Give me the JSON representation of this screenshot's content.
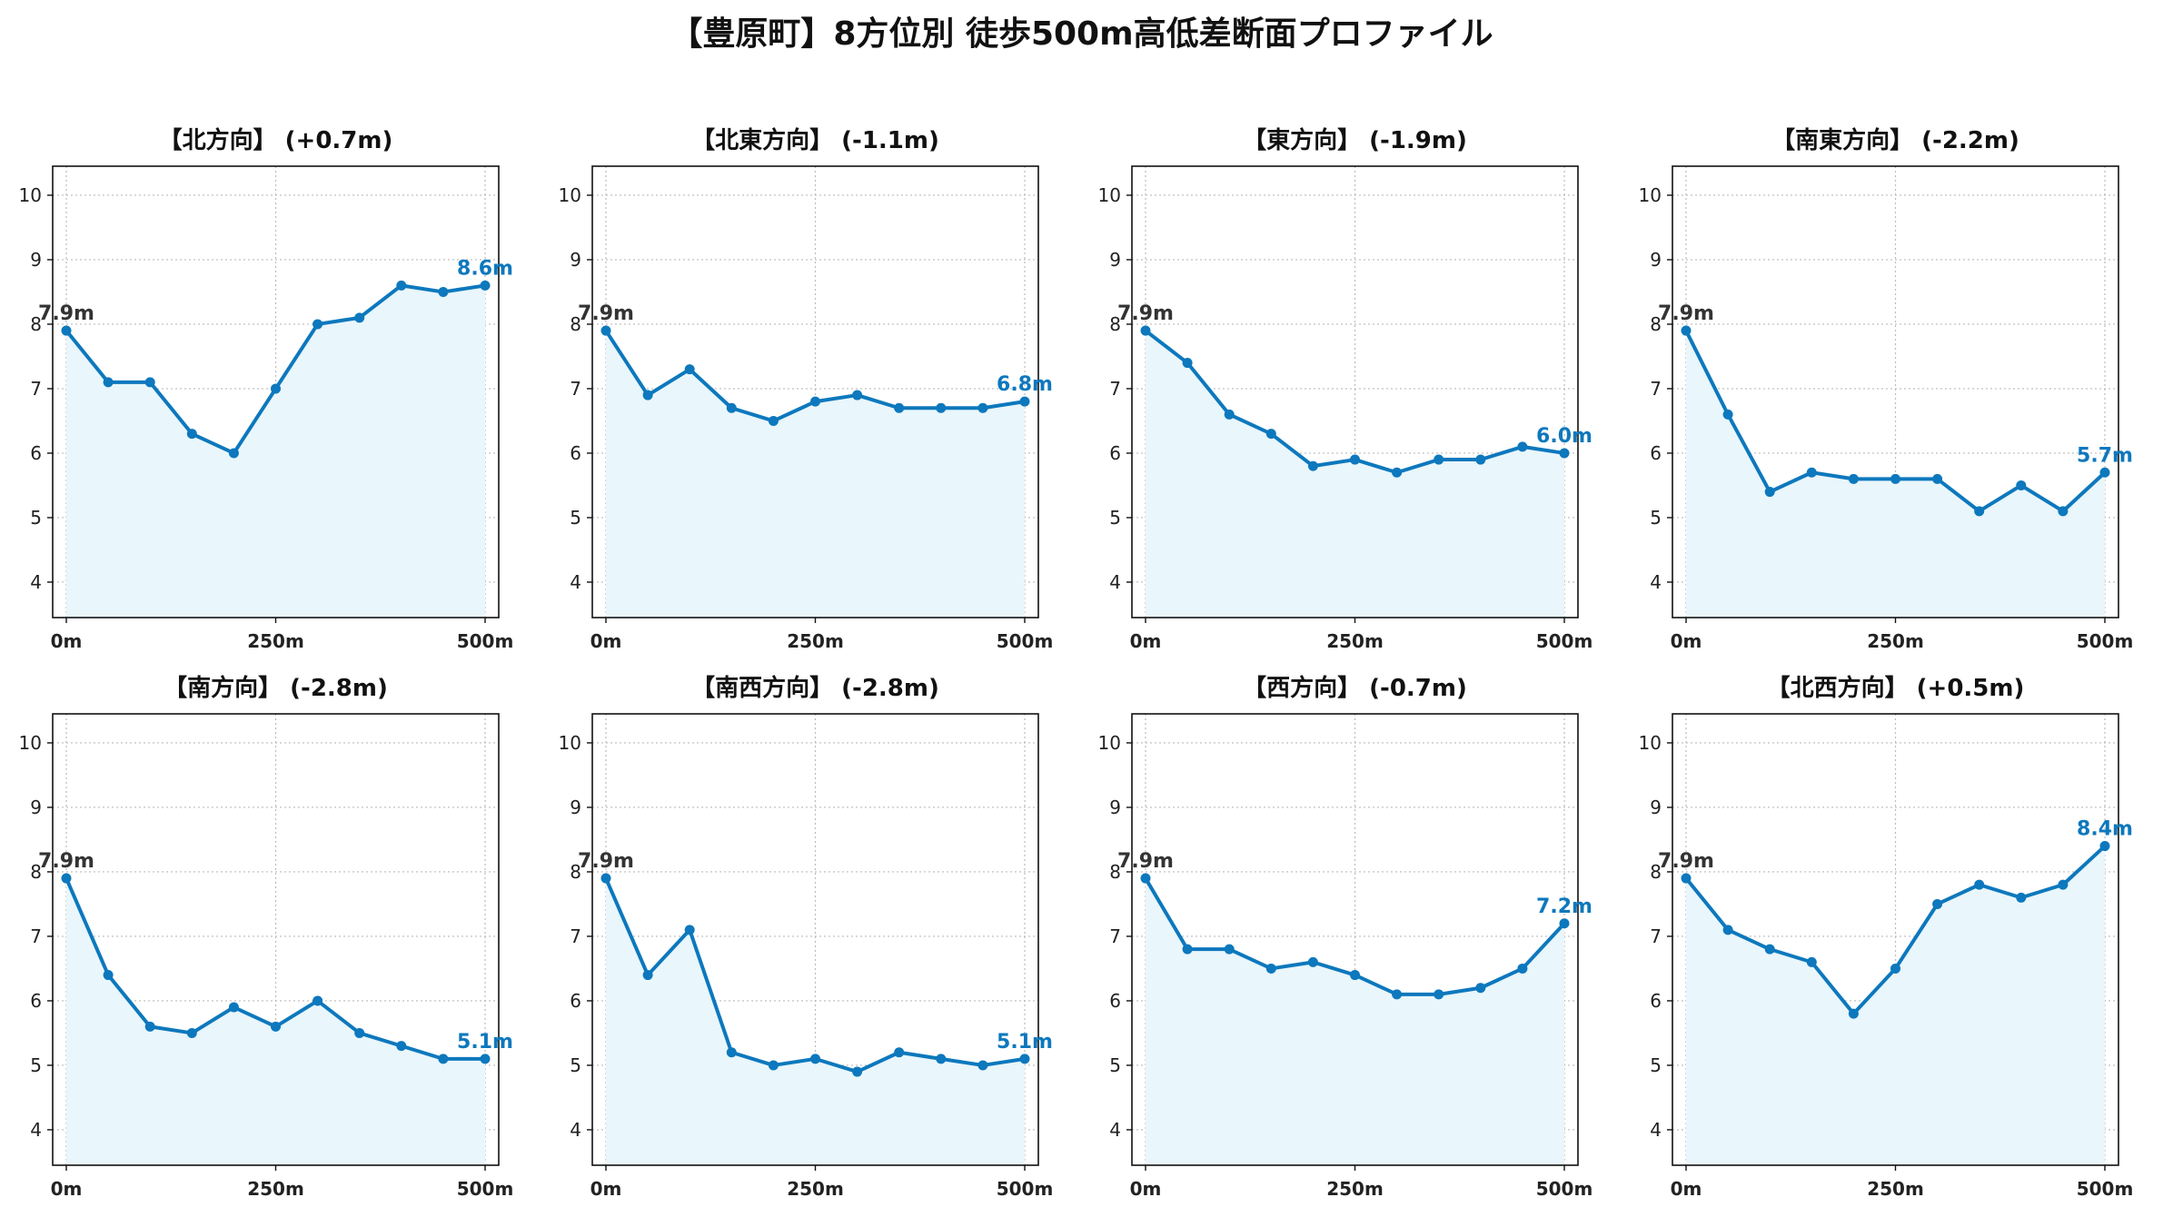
{
  "title": "【豊原町】8方位別 徒歩500m高低差断面プロファイル",
  "colors": {
    "line": "#0d78bd",
    "fill": "#e9f6fb",
    "grid": "#bbbbbb",
    "start_label": "#333333",
    "end_label": "#0d78bd"
  },
  "chart_data": [
    {
      "type": "line",
      "title": "【北方向】 (+0.7m)",
      "x": [
        0,
        50,
        100,
        150,
        200,
        250,
        300,
        350,
        400,
        450,
        500
      ],
      "xticks": [
        0,
        250,
        500
      ],
      "xtick_labels": [
        "0m",
        "250m",
        "500m"
      ],
      "ylim": [
        3.45,
        10.45
      ],
      "yticks": [
        4,
        5,
        6,
        7,
        8,
        9,
        10
      ],
      "grid": true,
      "fill_under": true,
      "values": [
        7.9,
        7.1,
        7.1,
        6.3,
        6.0,
        7.0,
        8.0,
        8.1,
        8.6,
        8.5,
        8.6
      ],
      "start_label": "7.9m",
      "end_label": "8.6m"
    },
    {
      "type": "line",
      "title": "【北東方向】 (-1.1m)",
      "x": [
        0,
        50,
        100,
        150,
        200,
        250,
        300,
        350,
        400,
        450,
        500
      ],
      "xticks": [
        0,
        250,
        500
      ],
      "xtick_labels": [
        "0m",
        "250m",
        "500m"
      ],
      "ylim": [
        3.45,
        10.45
      ],
      "yticks": [
        4,
        5,
        6,
        7,
        8,
        9,
        10
      ],
      "grid": true,
      "fill_under": true,
      "values": [
        7.9,
        6.9,
        7.3,
        6.7,
        6.5,
        6.8,
        6.9,
        6.7,
        6.7,
        6.7,
        6.8
      ],
      "start_label": "7.9m",
      "end_label": "6.8m"
    },
    {
      "type": "line",
      "title": "【東方向】 (-1.9m)",
      "x": [
        0,
        50,
        100,
        150,
        200,
        250,
        300,
        350,
        400,
        450,
        500
      ],
      "xticks": [
        0,
        250,
        500
      ],
      "xtick_labels": [
        "0m",
        "250m",
        "500m"
      ],
      "ylim": [
        3.45,
        10.45
      ],
      "yticks": [
        4,
        5,
        6,
        7,
        8,
        9,
        10
      ],
      "grid": true,
      "fill_under": true,
      "values": [
        7.9,
        7.4,
        6.6,
        6.3,
        5.8,
        5.9,
        5.7,
        5.9,
        5.9,
        6.1,
        6.0
      ],
      "start_label": "7.9m",
      "end_label": "6.0m"
    },
    {
      "type": "line",
      "title": "【南東方向】 (-2.2m)",
      "x": [
        0,
        50,
        100,
        150,
        200,
        250,
        300,
        350,
        400,
        450,
        500
      ],
      "xticks": [
        0,
        250,
        500
      ],
      "xtick_labels": [
        "0m",
        "250m",
        "500m"
      ],
      "ylim": [
        3.45,
        10.45
      ],
      "yticks": [
        4,
        5,
        6,
        7,
        8,
        9,
        10
      ],
      "grid": true,
      "fill_under": true,
      "values": [
        7.9,
        6.6,
        5.4,
        5.7,
        5.6,
        5.6,
        5.6,
        5.1,
        5.5,
        5.1,
        5.7
      ],
      "start_label": "7.9m",
      "end_label": "5.7m"
    },
    {
      "type": "line",
      "title": "【南方向】 (-2.8m)",
      "x": [
        0,
        50,
        100,
        150,
        200,
        250,
        300,
        350,
        400,
        450,
        500
      ],
      "xticks": [
        0,
        250,
        500
      ],
      "xtick_labels": [
        "0m",
        "250m",
        "500m"
      ],
      "ylim": [
        3.45,
        10.45
      ],
      "yticks": [
        4,
        5,
        6,
        7,
        8,
        9,
        10
      ],
      "grid": true,
      "fill_under": true,
      "values": [
        7.9,
        6.4,
        5.6,
        5.5,
        5.9,
        5.6,
        6.0,
        5.5,
        5.3,
        5.1,
        5.1
      ],
      "start_label": "7.9m",
      "end_label": "5.1m"
    },
    {
      "type": "line",
      "title": "【南西方向】 (-2.8m)",
      "x": [
        0,
        50,
        100,
        150,
        200,
        250,
        300,
        350,
        400,
        450,
        500
      ],
      "xticks": [
        0,
        250,
        500
      ],
      "xtick_labels": [
        "0m",
        "250m",
        "500m"
      ],
      "ylim": [
        3.45,
        10.45
      ],
      "yticks": [
        4,
        5,
        6,
        7,
        8,
        9,
        10
      ],
      "grid": true,
      "fill_under": true,
      "values": [
        7.9,
        6.4,
        7.1,
        5.2,
        5.0,
        5.1,
        4.9,
        5.2,
        5.1,
        5.0,
        5.1
      ],
      "start_label": "7.9m",
      "end_label": "5.1m"
    },
    {
      "type": "line",
      "title": "【西方向】 (-0.7m)",
      "x": [
        0,
        50,
        100,
        150,
        200,
        250,
        300,
        350,
        400,
        450,
        500
      ],
      "xticks": [
        0,
        250,
        500
      ],
      "xtick_labels": [
        "0m",
        "250m",
        "500m"
      ],
      "ylim": [
        3.45,
        10.45
      ],
      "yticks": [
        4,
        5,
        6,
        7,
        8,
        9,
        10
      ],
      "grid": true,
      "fill_under": true,
      "values": [
        7.9,
        6.8,
        6.8,
        6.5,
        6.6,
        6.4,
        6.1,
        6.1,
        6.2,
        6.5,
        7.2
      ],
      "start_label": "7.9m",
      "end_label": "7.2m"
    },
    {
      "type": "line",
      "title": "【北西方向】 (+0.5m)",
      "x": [
        0,
        50,
        100,
        150,
        200,
        250,
        300,
        350,
        400,
        450,
        500
      ],
      "xticks": [
        0,
        250,
        500
      ],
      "xtick_labels": [
        "0m",
        "250m",
        "500m"
      ],
      "ylim": [
        3.45,
        10.45
      ],
      "yticks": [
        4,
        5,
        6,
        7,
        8,
        9,
        10
      ],
      "grid": true,
      "fill_under": true,
      "values": [
        7.9,
        7.1,
        6.8,
        6.6,
        5.8,
        6.5,
        7.5,
        7.8,
        7.6,
        7.8,
        8.4
      ],
      "start_label": "7.9m",
      "end_label": "8.4m"
    }
  ]
}
